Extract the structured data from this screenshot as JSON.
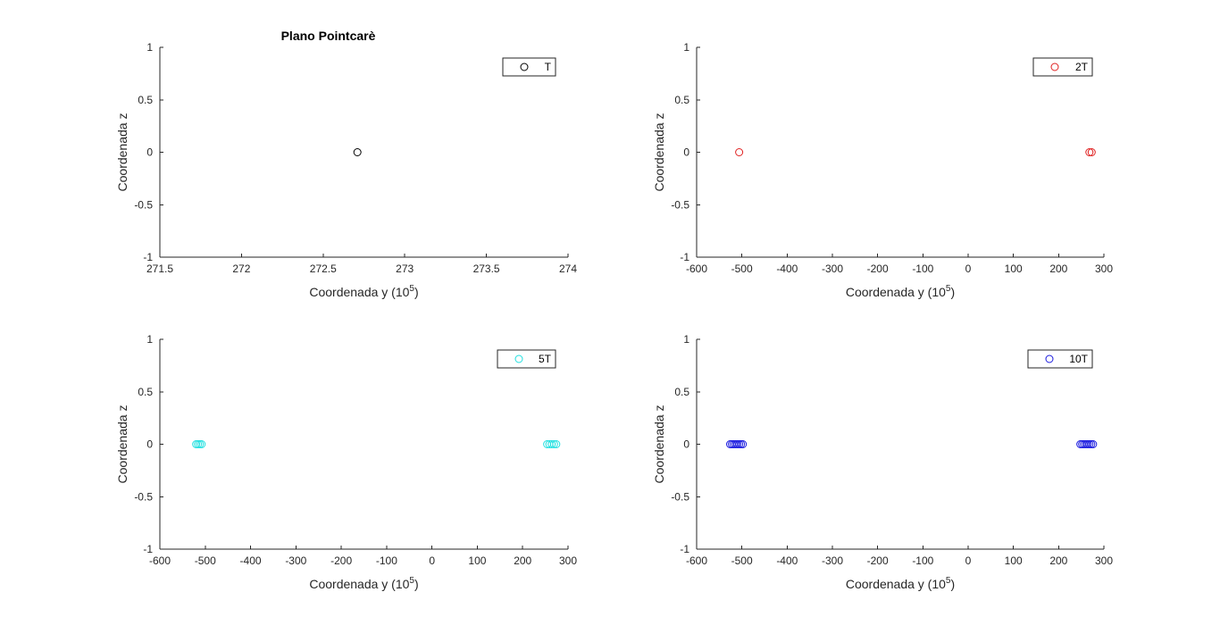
{
  "background": "#ffffff",
  "chart_data": [
    {
      "type": "scatter",
      "title": "Plano Pointcarè",
      "xlabel_main": "Coordenada y (10",
      "xlabel_sup": "5",
      "xlabel_end": ")",
      "ylabel": "Coordenada z",
      "xlim": [
        271.5,
        274
      ],
      "ylim": [
        -1,
        1
      ],
      "xticks": [
        "271.5",
        "272",
        "272.5",
        "273",
        "273.5",
        "274"
      ],
      "yticks": [
        "-1",
        "-0.5",
        "0",
        "0.5",
        "1"
      ],
      "grid": false,
      "legend": "top-right",
      "series": [
        {
          "name": "T",
          "color": "#000000",
          "marker": "circle",
          "x": [
            272.71
          ],
          "y": [
            0
          ]
        }
      ]
    },
    {
      "type": "scatter",
      "title": "",
      "xlabel_main": "Coordenada y (10",
      "xlabel_sup": "5",
      "xlabel_end": ")",
      "ylabel": "Coordenada z",
      "xlim": [
        -600,
        300
      ],
      "ylim": [
        -1,
        1
      ],
      "xticks": [
        "-600",
        "-500",
        "-400",
        "-300",
        "-200",
        "-100",
        "0",
        "100",
        "200",
        "300"
      ],
      "yticks": [
        "-1",
        "-0.5",
        "0",
        "0.5",
        "1"
      ],
      "grid": false,
      "legend": "top-right",
      "series": [
        {
          "name": "2T",
          "color": "#e02020",
          "marker": "circle",
          "x": [
            -506,
            268,
            273
          ],
          "y": [
            0,
            0,
            0
          ]
        }
      ]
    },
    {
      "type": "scatter",
      "title": "",
      "xlabel_main": "Coordenada y (10",
      "xlabel_sup": "5",
      "xlabel_end": ")",
      "ylabel": "Coordenada z",
      "xlim": [
        -600,
        300
      ],
      "ylim": [
        -1,
        1
      ],
      "xticks": [
        "-600",
        "-500",
        "-400",
        "-300",
        "-200",
        "-100",
        "0",
        "100",
        "200",
        "300"
      ],
      "yticks": [
        "-1",
        "-0.5",
        "0",
        "0.5",
        "1"
      ],
      "grid": false,
      "legend": "top-right",
      "series": [
        {
          "name": "5T",
          "color": "#20e0e0",
          "marker": "circle",
          "x": [
            -520,
            -516,
            -512,
            -508,
            254,
            259,
            264,
            269,
            274
          ],
          "y": [
            0,
            0,
            0,
            0,
            0,
            0,
            0,
            0,
            0
          ]
        }
      ]
    },
    {
      "type": "scatter",
      "title": "",
      "xlabel_main": "Coordenada y (10",
      "xlabel_sup": "5",
      "xlabel_end": ")",
      "ylabel": "Coordenada z",
      "xlim": [
        -600,
        300
      ],
      "ylim": [
        -1,
        1
      ],
      "xticks": [
        "-600",
        "-500",
        "-400",
        "-300",
        "-200",
        "-100",
        "0",
        "100",
        "200",
        "300"
      ],
      "yticks": [
        "-1",
        "-0.5",
        "0",
        "0.5",
        "1"
      ],
      "grid": false,
      "legend": "top-right",
      "series": [
        {
          "name": "10T",
          "color": "#1a1adf",
          "marker": "circle",
          "x": [
            -526,
            -522,
            -518,
            -514,
            -510,
            -506,
            -502,
            -498,
            248,
            252,
            256,
            260,
            264,
            268,
            272,
            276
          ],
          "y": [
            0,
            0,
            0,
            0,
            0,
            0,
            0,
            0,
            0,
            0,
            0,
            0,
            0,
            0,
            0,
            0
          ]
        }
      ]
    }
  ]
}
